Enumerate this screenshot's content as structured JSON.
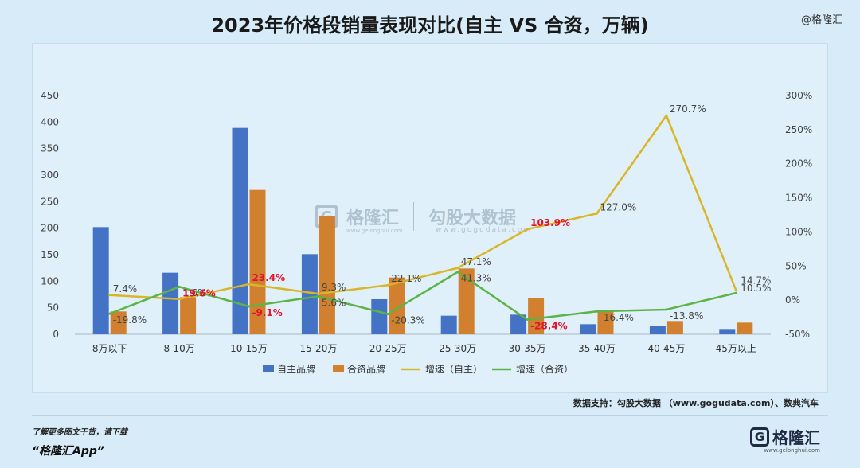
{
  "title": "2023年价格段销量表现对比(自主 VS 合资，万辆)",
  "brand_top": "@格隆汇",
  "watermark": {
    "logo_letter": "G",
    "name": "格隆汇",
    "site": "www.gelonghui.com",
    "name2": "勾股大数据",
    "site2": "www.gogudata.com"
  },
  "source": "数据支持：勾股大数据 （www.gogudata.com）、数典汽车",
  "footer": {
    "more": "了解更多图文干货，请下载",
    "app": "“格隆汇App”",
    "logo_letter": "G",
    "logo_text": "格隆汇",
    "logo_sub": "www.gelonghui.com"
  },
  "colors": {
    "bar1": "#4472c4",
    "bar2": "#d0802e",
    "line1": "#d9b52b",
    "line2": "#5cb347",
    "highlight": "#e0142c",
    "label": "#444444"
  },
  "chart_data": {
    "type": "bar",
    "categories": [
      "8万以下",
      "8-10万",
      "10-15万",
      "15-20万",
      "20-25万",
      "25-30万",
      "30-35万",
      "35-40万",
      "40-45万",
      "45万以上"
    ],
    "y_left": {
      "min": 0,
      "max": 450,
      "ticks": [
        "0",
        "50",
        "100",
        "150",
        "200",
        "250",
        "300",
        "350",
        "400",
        "450"
      ]
    },
    "y_right": {
      "min": -50,
      "max": 300,
      "ticks": [
        "-50%",
        "0%",
        "50%",
        "100%",
        "150%",
        "200%",
        "250%",
        "300%"
      ]
    },
    "series": [
      {
        "name": "自主品牌",
        "kind": "bar",
        "axis": "left",
        "values": [
          202,
          116,
          389,
          151,
          66,
          35,
          37,
          19,
          15,
          10
        ]
      },
      {
        "name": "合资品牌",
        "kind": "bar",
        "axis": "left",
        "values": [
          43,
          70,
          272,
          222,
          107,
          124,
          68,
          43,
          25,
          22
        ]
      },
      {
        "name": "增速（自主）",
        "kind": "line",
        "axis": "right",
        "values": [
          7.4,
          1.6,
          23.4,
          9.3,
          22.1,
          47.1,
          103.9,
          127.0,
          270.7,
          14.7
        ],
        "labels": [
          "7.4%",
          "1.6%",
          "23.4%",
          "9.3%",
          "22.1%",
          "47.1%",
          "103.9%",
          "127.0%",
          "270.7%",
          "14.7%"
        ],
        "highlight": [
          false,
          false,
          true,
          false,
          false,
          false,
          true,
          false,
          false,
          false
        ]
      },
      {
        "name": "增速（合资）",
        "kind": "line",
        "axis": "right",
        "values": [
          -19.8,
          19.6,
          -9.1,
          5.6,
          -20.3,
          41.3,
          -28.4,
          -16.4,
          -13.8,
          10.5
        ],
        "labels": [
          "-19.8%",
          "19.6%",
          "-9.1%",
          "5.6%",
          "-20.3%",
          "41.3%",
          "-28.4%",
          "-16.4%",
          "-13.8%",
          "10.5%"
        ],
        "highlight": [
          false,
          true,
          true,
          false,
          false,
          false,
          true,
          false,
          false,
          false
        ]
      }
    ],
    "legend_position": "bottom",
    "grid": false
  }
}
